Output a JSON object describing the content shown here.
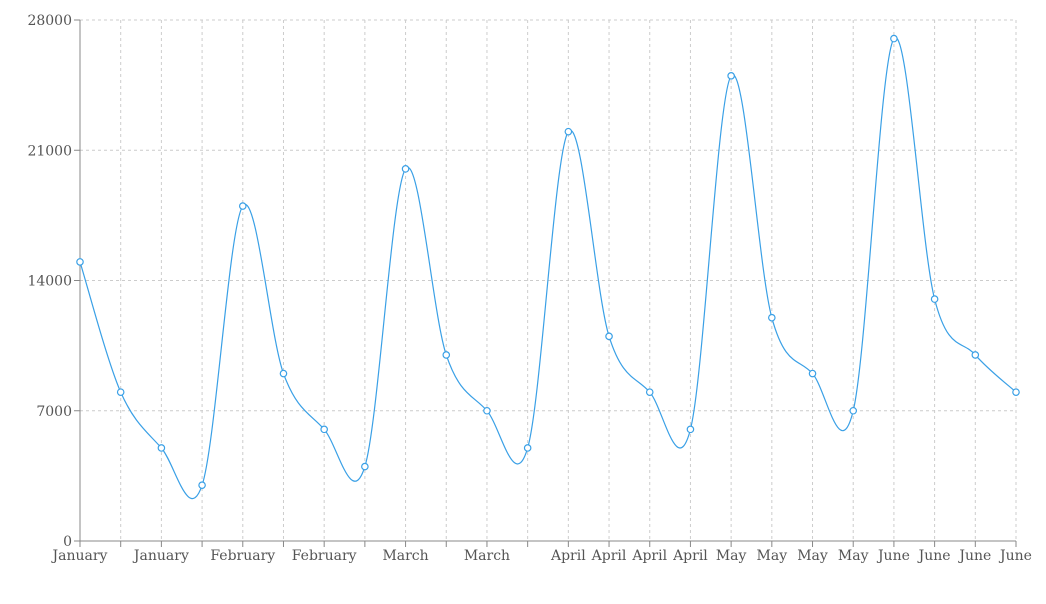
{
  "chart_data": {
    "type": "line",
    "title": "",
    "xlabel": "",
    "ylabel": "",
    "ylim": [
      0,
      28000
    ],
    "y_ticks": [
      0,
      7000,
      14000,
      21000,
      28000
    ],
    "grid": true,
    "legend": "none",
    "x": [
      "January",
      "January",
      "January",
      "January",
      "February",
      "February",
      "February",
      "February",
      "March",
      "March",
      "March",
      "March",
      "April",
      "April",
      "April",
      "April",
      "May",
      "May",
      "May",
      "May",
      "June",
      "June",
      "June",
      "June"
    ],
    "x_tick_labels": [
      "January",
      "",
      "January",
      "",
      "February",
      "",
      "February",
      "",
      "March",
      "",
      "March",
      "",
      "April",
      "April",
      "April",
      "April",
      "May",
      "May",
      "May",
      "May",
      "June",
      "June",
      "June",
      "June"
    ],
    "series": [
      {
        "values": [
          15000,
          8000,
          5000,
          3000,
          18000,
          9000,
          6000,
          4000,
          20000,
          10000,
          7000,
          5000,
          22000,
          11000,
          8000,
          6000,
          25000,
          12000,
          9000,
          7000,
          27000,
          13000,
          10000,
          8000
        ]
      }
    ],
    "colors": {
      "line": "#3aa0e6",
      "point_fill": "#ffffff",
      "grid": "#cccccc",
      "axis": "#888888",
      "tick_text": "#555555"
    }
  }
}
